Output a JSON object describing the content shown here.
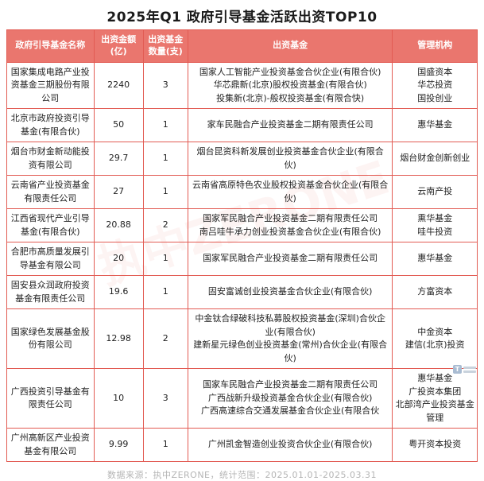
{
  "chart_data": {
    "type": "table",
    "title": "2025年Q1 政府引导基金活跃出资TOP10",
    "columns": [
      "政府引导基金名称",
      "出资金额(亿)",
      "出资基金数量(支)",
      "出资基金",
      "管理机构"
    ],
    "rows": [
      {
        "name": "国家集成电路产业投资基金三期股份有限公司",
        "amount": "2240",
        "count": "3",
        "funds": [
          "国家人工智能产业投资基金合伙企业(有限合伙)",
          "华芯鼎新(北京)股权投资基金(有限合伙)",
          "投集新(北京)-般权投资基金(有限合快)"
        ],
        "managers": [
          "国盛资本",
          "华芯投资",
          "国投创业"
        ]
      },
      {
        "name": "北京市政府投资引导基金(有限合伙)",
        "amount": "50",
        "count": "1",
        "funds": [
          "家车民融合产业投资基金二期有限责任公司"
        ],
        "managers": [
          "惠华基金"
        ]
      },
      {
        "name": "烟台市财金新动能投资有限公司",
        "amount": "29.7",
        "count": "1",
        "funds": [
          "烟台昆资科新发展创业投资基金合伙企业(有限合伙)"
        ],
        "managers": [
          "烟台财金创新创业"
        ]
      },
      {
        "name": "云南省产业投资基金有限责任公司",
        "amount": "27",
        "count": "1",
        "funds": [
          "云南省高原特色农业股权投资基金合伙企业(有限合伙)"
        ],
        "managers": [
          "云南产投"
        ]
      },
      {
        "name": "江西省现代产业引导基金(有限合伙)",
        "amount": "20.88",
        "count": "2",
        "funds": [
          "国家军民融合产业投资基金二期有限责任公司",
          "南吕哇牛承力创业投资基金合伙企业(有限合伙)"
        ],
        "managers": [
          "熏华基金",
          "哇牛投资"
        ]
      },
      {
        "name": "合肥市高质量发展引导基金有限公司",
        "amount": "20",
        "count": "1",
        "funds": [
          "国家军民融合产业投资基金二期有限责任公司"
        ],
        "managers": [
          "惠华基金"
        ]
      },
      {
        "name": "固安县众润政府投资基金有限责任公司",
        "amount": "19.6",
        "count": "1",
        "funds": [
          "固安富诚创业投资基金合伙企业(有限合伙)"
        ],
        "managers": [
          "方富资本"
        ]
      },
      {
        "name": "国家绿色发展基金股份有限公司",
        "amount": "12.98",
        "count": "2",
        "funds": [
          "中金钛合绿破科技私募股权投资基金(深圳)合伙企业(有限合伙)",
          "建新星元绿色创业投资基金(常州)合伙企业(有限合伙)"
        ],
        "managers": [
          "中金资本",
          "建信(北京)投资"
        ]
      },
      {
        "name": "广西投资引导基金有限责任公司",
        "amount": "10",
        "count": "3",
        "funds": [
          "国家车民融合产业投资基金二期有限责任公司",
          "广西战新升级投资基金合伙企业(有限合伙)",
          "广西高速综合交通发展基金合伙企业(有限合伙"
        ],
        "managers": [
          "惠华基金",
          "广投资本集团",
          "北部湾产业投资基金管理"
        ]
      },
      {
        "name": "广州高新区产业投资基金有限公司",
        "amount": "9.99",
        "count": "1",
        "funds": [
          "广州凯金智造创业投资合伙企业(有限合伙)"
        ],
        "managers": [
          "粤开资本投资"
        ]
      }
    ]
  },
  "footer": {
    "source_note": "数据来源：执中ZERONE，统计范围：2025.01.01-2025.03.31"
  },
  "watermark": {
    "text": "执中ZERONE"
  },
  "colors": {
    "header_bg": "#ea766e",
    "table_border": "#e25b53",
    "title_text": "#1a1a1a",
    "footer_text": "#b5b5b5"
  },
  "column_widths_pct": [
    18.5,
    10.5,
    9.5,
    43.5,
    18.0
  ]
}
